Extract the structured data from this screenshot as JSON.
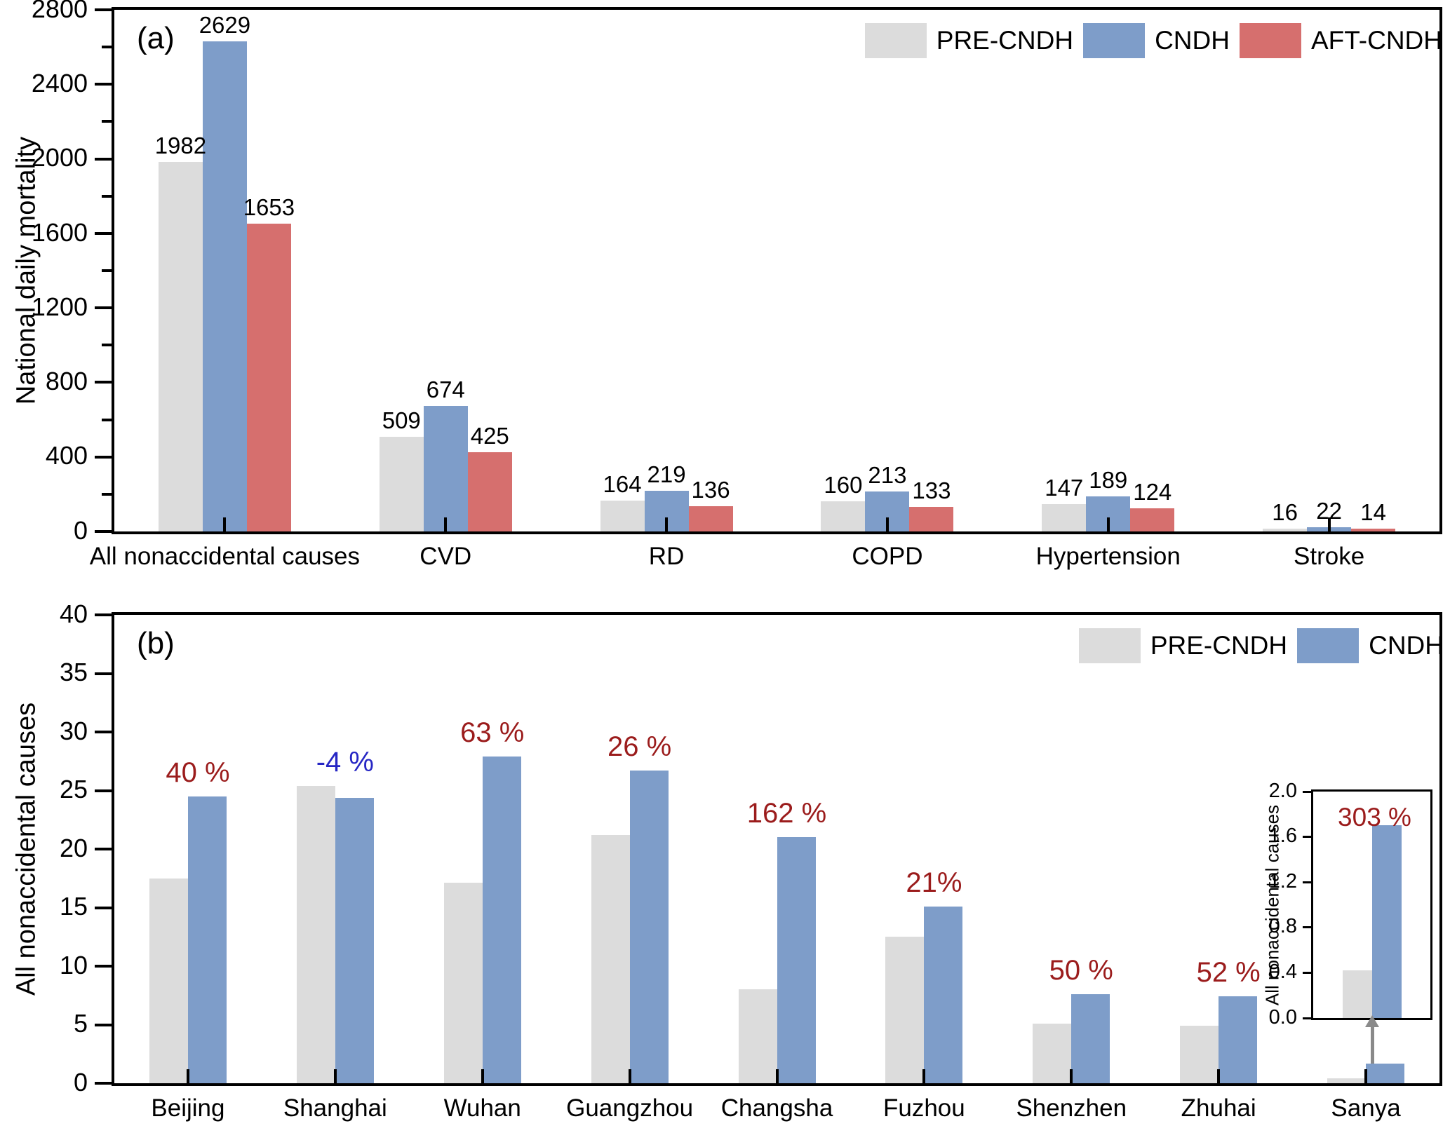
{
  "chart_data": [
    {
      "id": "a",
      "type": "bar",
      "panel_label": "(a)",
      "ylabel": "National daily mortality",
      "xlabel": "",
      "ylim": [
        0,
        2800
      ],
      "ytick_step": 400,
      "yminor_step": 200,
      "grid": false,
      "legend_position": "top-right-inside",
      "categories": [
        "All nonaccidental causes",
        "CVD",
        "RD",
        "COPD",
        "Hypertension",
        "Stroke"
      ],
      "series": [
        {
          "name": "PRE-CNDH",
          "color": "#dcdcdc",
          "values": [
            1982,
            509,
            164,
            160,
            147,
            16
          ]
        },
        {
          "name": "CNDH",
          "color": "#7e9dc9",
          "values": [
            2629,
            674,
            219,
            213,
            189,
            22
          ]
        },
        {
          "name": "AFT-CNDH",
          "color": "#d66f6e",
          "values": [
            1653,
            425,
            136,
            133,
            124,
            14
          ]
        }
      ],
      "value_labels": true
    },
    {
      "id": "b",
      "type": "bar",
      "panel_label": "(b)",
      "ylabel": "All nonaccidental causes",
      "xlabel": "",
      "ylim": [
        0,
        40
      ],
      "ytick_step": 5,
      "grid": false,
      "legend_position": "top-right-inside",
      "categories": [
        "Beijing",
        "Shanghai",
        "Wuhan",
        "Guangzhou",
        "Changsha",
        "Fuzhou",
        "Shenzhen",
        "Zhuhai",
        "Sanya"
      ],
      "series": [
        {
          "name": "PRE-CNDH",
          "color": "#dcdcdc",
          "values": [
            17.5,
            25.4,
            17.1,
            21.2,
            8.0,
            12.5,
            5.1,
            4.9,
            0.42
          ]
        },
        {
          "name": "CNDH",
          "color": "#7e9dc9",
          "values": [
            24.5,
            24.4,
            27.9,
            26.7,
            21.0,
            15.1,
            7.6,
            7.4,
            1.7
          ]
        }
      ],
      "value_labels": false,
      "percent_labels": [
        {
          "text": "40 %",
          "color": "#9b1c1c"
        },
        {
          "text": "-4 %",
          "color": "#2626c4"
        },
        {
          "text": "63 %",
          "color": "#9b1c1c"
        },
        {
          "text": "26 %",
          "color": "#9b1c1c"
        },
        {
          "text": "162 %",
          "color": "#9b1c1c"
        },
        {
          "text": "21%",
          "color": "#9b1c1c"
        },
        {
          "text": "50 %",
          "color": "#9b1c1c"
        },
        {
          "text": "52 %",
          "color": "#9b1c1c"
        },
        null
      ],
      "inset": {
        "ylabel": "All nonaccidental causes",
        "ylim": [
          0,
          2.0
        ],
        "ytick_step": 0.4,
        "categories": [
          "Sanya"
        ],
        "series": [
          {
            "name": "PRE-CNDH",
            "color": "#dcdcdc",
            "values": [
              0.42
            ]
          },
          {
            "name": "CNDH",
            "color": "#7e9dc9",
            "values": [
              1.7
            ]
          }
        ],
        "percent_label": {
          "text": "303 %",
          "color": "#9b1c1c"
        },
        "arrow_color": "#8a8a8a"
      }
    }
  ]
}
